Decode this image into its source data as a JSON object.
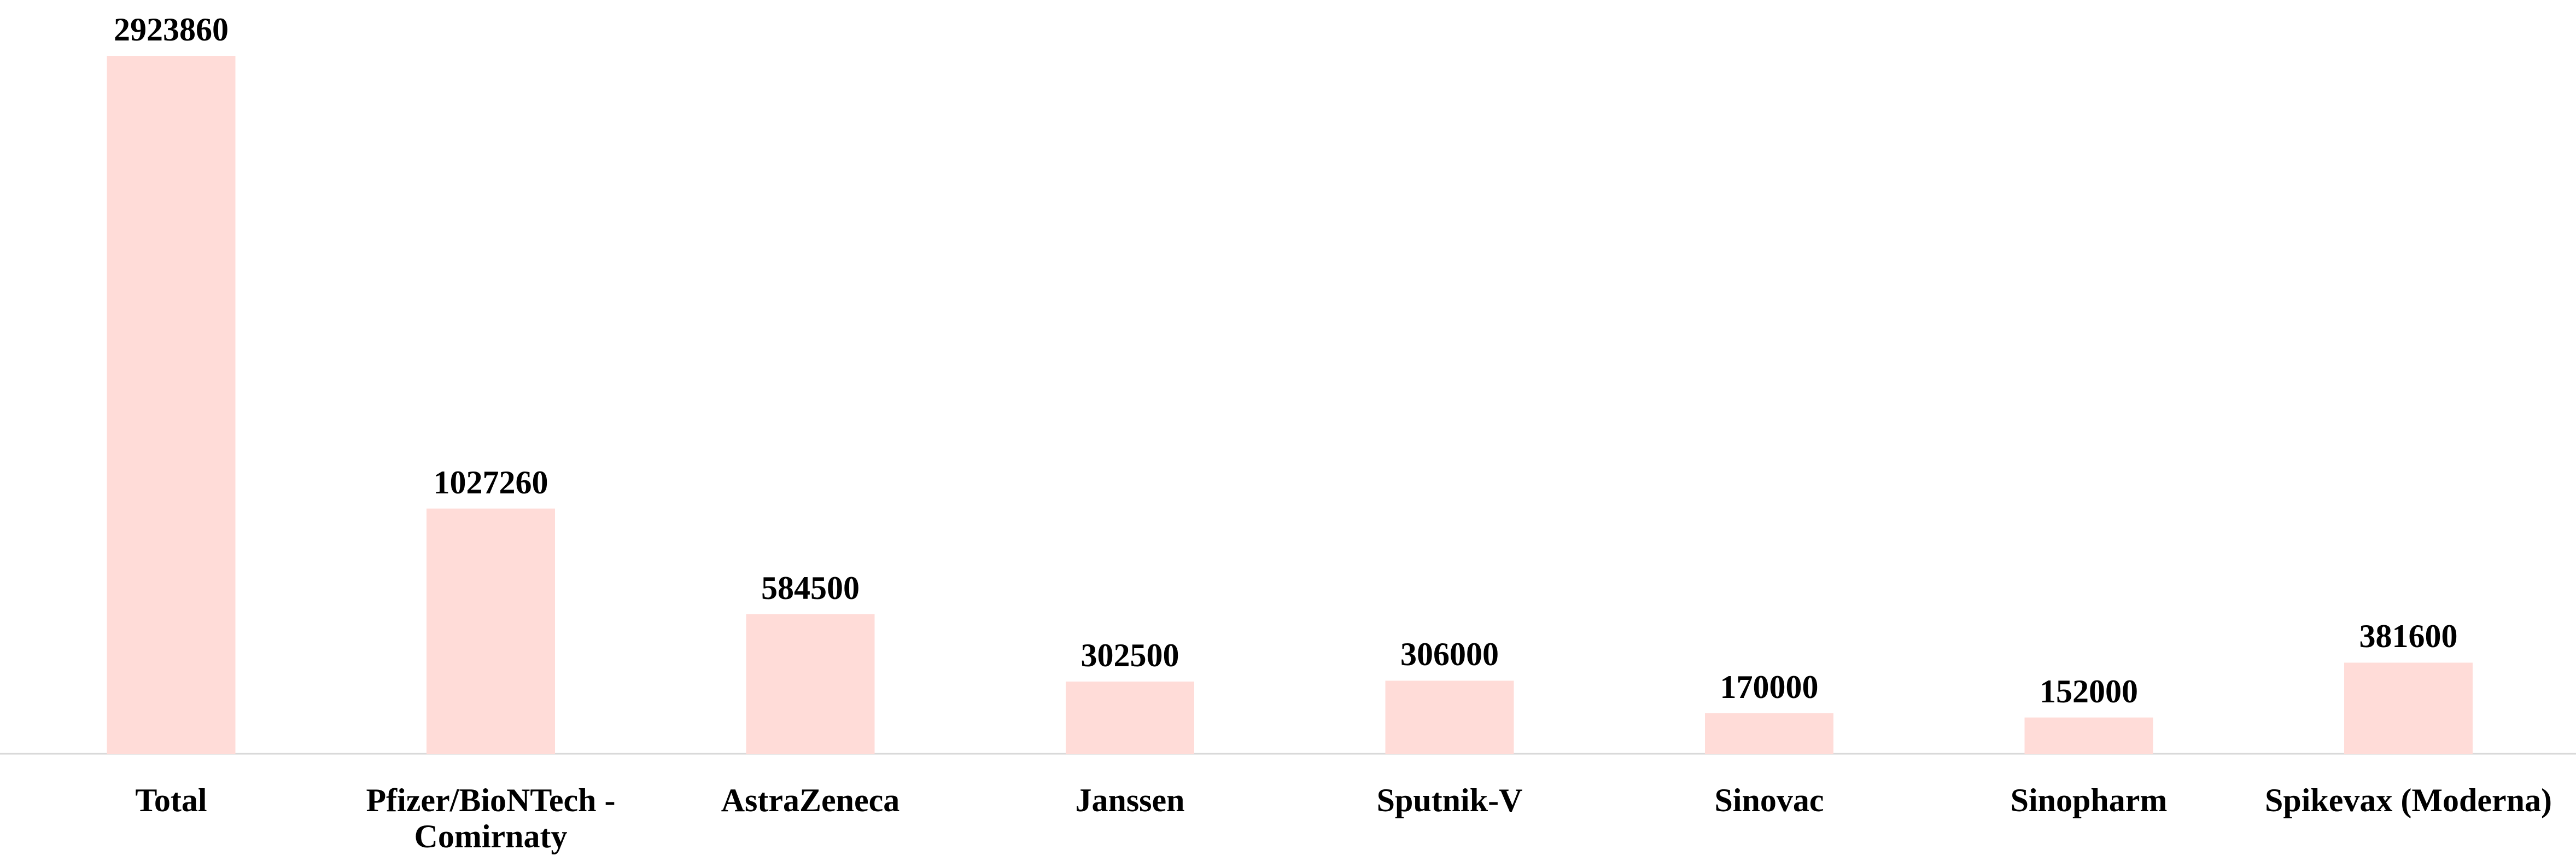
{
  "chart_data": {
    "type": "bar",
    "categories": [
      "Total",
      "Pfizer/BioNTech - Comirnaty",
      "AstraZeneca",
      "Janssen",
      "Sputnik-V",
      "Sinovac",
      "Sinopharm",
      "Spikevax (Moderna)"
    ],
    "values": [
      2923860,
      1027260,
      584500,
      302500,
      306000,
      170000,
      152000,
      381600
    ],
    "color": "#ffdcd8"
  }
}
